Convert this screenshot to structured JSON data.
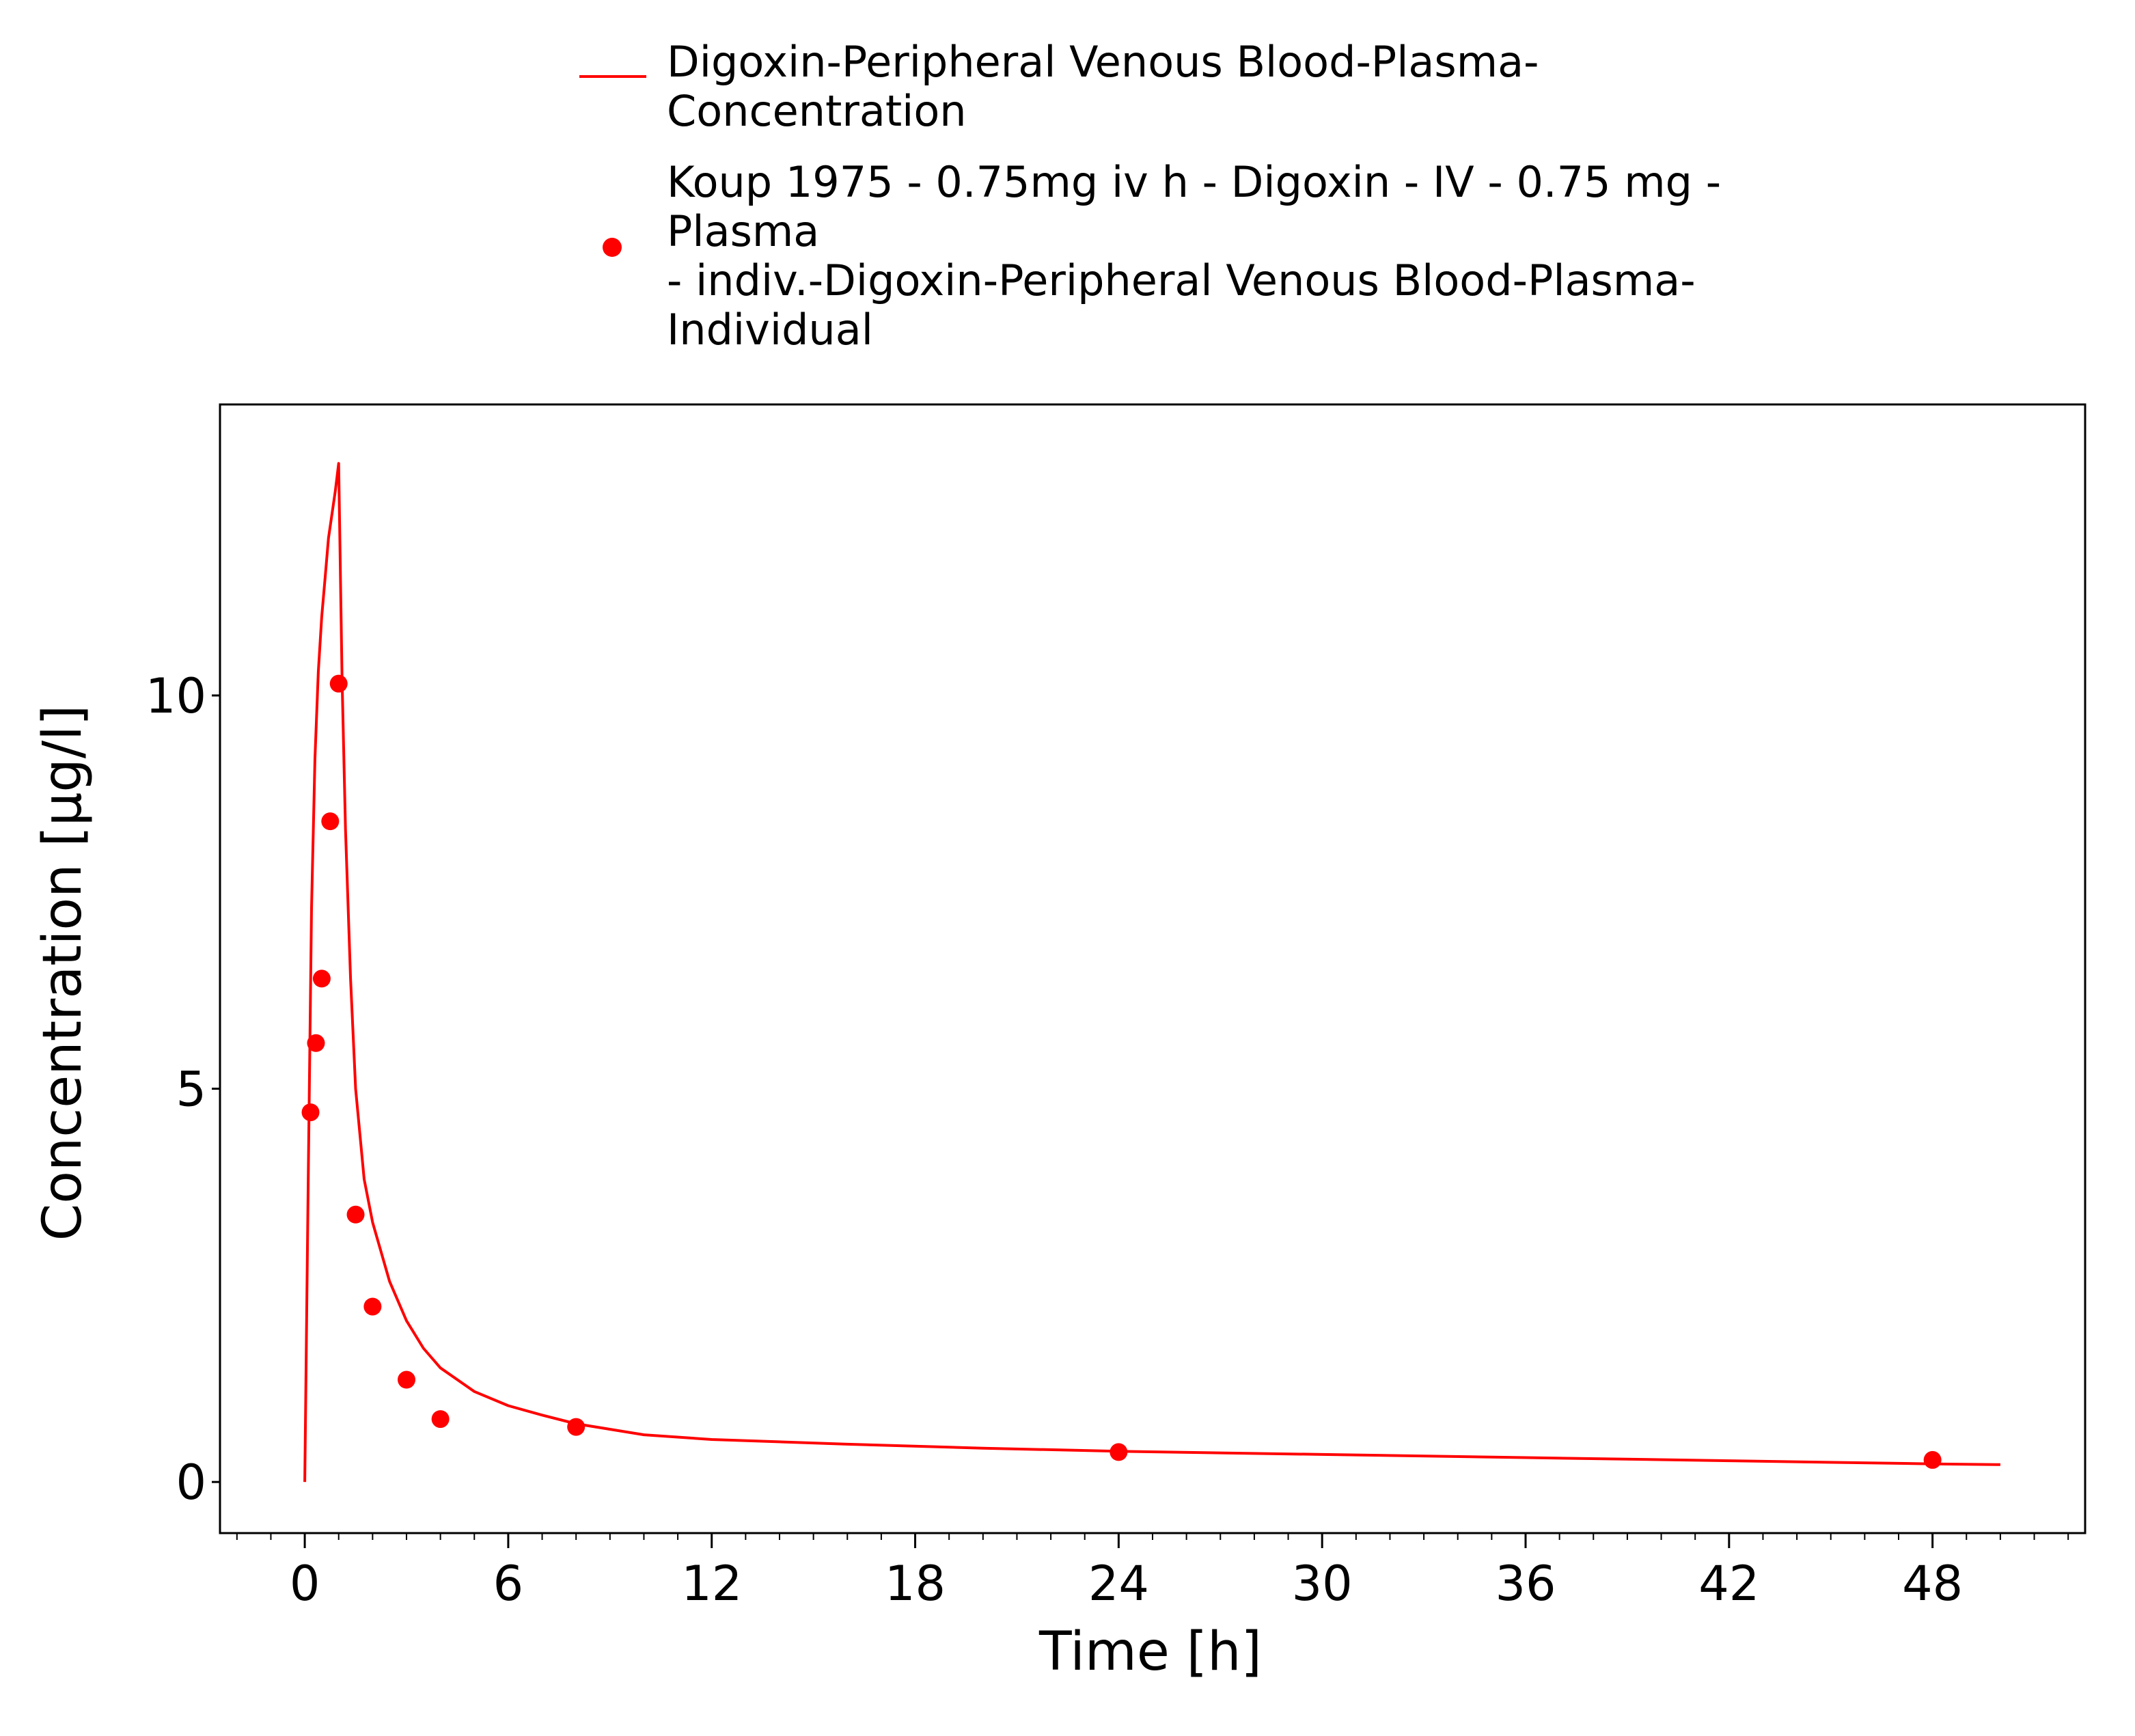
{
  "chart_data": {
    "type": "line",
    "title": "",
    "xlabel": "Time [h]",
    "ylabel": "Concentration [µg/l]",
    "xlim": [
      -2.5,
      52.5
    ],
    "ylim": [
      -0.65,
      13.7
    ],
    "xticks": [
      0,
      6,
      12,
      18,
      24,
      30,
      36,
      42,
      48
    ],
    "xtick_labels": [
      "0",
      "6",
      "12",
      "18",
      "24",
      "30",
      "36",
      "42",
      "48"
    ],
    "x_minor_step": 1,
    "yticks": [
      0,
      5,
      10
    ],
    "ytick_labels": [
      "0",
      "5",
      "10"
    ],
    "grid": false,
    "legend_position": "top-center (above plot)",
    "color": "#ff0000",
    "series": [
      {
        "name": "Digoxin-Peripheral Venous Blood-Plasma-Concentration",
        "kind": "line",
        "x": [
          0,
          0.1,
          0.2,
          0.3,
          0.4,
          0.5,
          0.6,
          0.7,
          0.8,
          0.9,
          1.0,
          1.1,
          1.2,
          1.35,
          1.5,
          1.75,
          2.0,
          2.5,
          3.0,
          3.5,
          4.0,
          5.0,
          6.0,
          7.0,
          8.0,
          10.0,
          12.0,
          16.0,
          20.0,
          24.0,
          30.0,
          36.0,
          42.0,
          48.0,
          50.0
        ],
        "y": [
          0,
          3.8,
          7.3,
          9.2,
          10.3,
          11.0,
          11.5,
          12.0,
          12.3,
          12.6,
          12.95,
          10.2,
          8.3,
          6.4,
          5.0,
          3.85,
          3.3,
          2.55,
          2.05,
          1.7,
          1.45,
          1.15,
          0.97,
          0.85,
          0.74,
          0.6,
          0.54,
          0.48,
          0.43,
          0.39,
          0.35,
          0.31,
          0.27,
          0.23,
          0.22
        ]
      },
      {
        "name": "Koup 1975 - 0.75mg iv h - Digoxin - IV - 0.75 mg - Plasma - indiv.-Digoxin-Peripheral Venous Blood-Plasma-Individual",
        "kind": "scatter",
        "x": [
          0.17,
          0.33,
          0.5,
          0.75,
          1.0,
          1.5,
          2.0,
          3.0,
          4.0,
          8.0,
          24.0,
          48.0
        ],
        "y": [
          4.7,
          5.58,
          6.4,
          8.4,
          10.15,
          3.4,
          2.23,
          1.3,
          0.8,
          0.7,
          0.38,
          0.28
        ]
      }
    ]
  },
  "legend": {
    "line_entry": [
      "Digoxin-Peripheral Venous Blood-Plasma-",
      "Concentration"
    ],
    "scatter_entry": [
      "Koup 1975 - 0.75mg iv h - Digoxin - IV - 0.75 mg -",
      "Plasma",
      "- indiv.-Digoxin-Peripheral Venous Blood-Plasma-",
      "Individual"
    ]
  }
}
